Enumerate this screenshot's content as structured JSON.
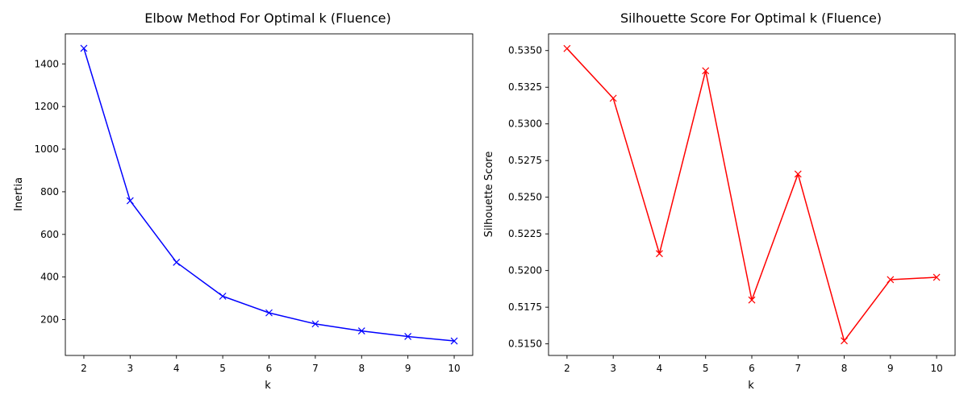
{
  "chart_data": [
    {
      "type": "line",
      "title": "Elbow Method For Optimal k (Fluence)",
      "xlabel": "k",
      "ylabel": "Inertia",
      "x": [
        2,
        3,
        4,
        5,
        6,
        7,
        8,
        9,
        10
      ],
      "series": [
        {
          "values": [
            1473,
            758,
            469,
            310,
            232,
            180,
            147,
            121,
            100
          ],
          "color": "#0000ff",
          "marker": "x"
        }
      ],
      "xlim": [
        1.6,
        10.4
      ],
      "ylim": [
        32,
        1541
      ],
      "xticks": [
        2,
        3,
        4,
        5,
        6,
        7,
        8,
        9,
        10
      ],
      "yticks": [
        200,
        400,
        600,
        800,
        1000,
        1200,
        1400
      ],
      "ytick_labels": [
        "200",
        "400",
        "600",
        "800",
        "1000",
        "1200",
        "1400"
      ],
      "grid": false
    },
    {
      "type": "line",
      "title": "Silhouette Score For Optimal k (Fluence)",
      "xlabel": "k",
      "ylabel": "Silhouette Score",
      "x": [
        2,
        3,
        4,
        5,
        6,
        7,
        8,
        9,
        10
      ],
      "series": [
        {
          "values": [
            0.53514,
            0.53175,
            0.52115,
            0.53362,
            0.51799,
            0.52658,
            0.51521,
            0.51938,
            0.51954
          ],
          "color": "#ff0000",
          "marker": "x"
        }
      ],
      "xlim": [
        1.6,
        10.4
      ],
      "ylim": [
        0.51421,
        0.53614
      ],
      "xticks": [
        2,
        3,
        4,
        5,
        6,
        7,
        8,
        9,
        10
      ],
      "yticks": [
        0.515,
        0.5175,
        0.52,
        0.5225,
        0.525,
        0.5275,
        0.53,
        0.5325,
        0.535
      ],
      "ytick_labels": [
        "0.5150",
        "0.5175",
        "0.5200",
        "0.5225",
        "0.5250",
        "0.5275",
        "0.5300",
        "0.5325",
        "0.5350"
      ],
      "grid": false
    }
  ]
}
